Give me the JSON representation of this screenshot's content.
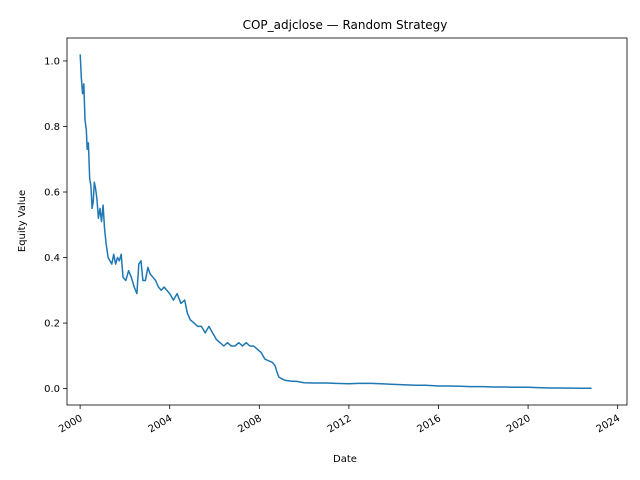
{
  "chart_data": {
    "type": "line",
    "title": "COP_adjclose — Random Strategy",
    "xlabel": "Date",
    "ylabel": "Equity Value",
    "x_axis_type": "date",
    "xlim": [
      "1999-06-01",
      "2024-06-01"
    ],
    "ylim": [
      -0.05,
      1.07
    ],
    "x_ticks": [
      "2000",
      "2004",
      "2008",
      "2012",
      "2016",
      "2020",
      "2024"
    ],
    "y_ticks": [
      "0.0",
      "0.2",
      "0.4",
      "0.6",
      "0.8",
      "1.0"
    ],
    "grid": false,
    "legend": "none",
    "series": [
      {
        "color": "#1f77b4",
        "points": [
          [
            "2000-01-03",
            1.02
          ],
          [
            "2000-01-20",
            0.95
          ],
          [
            "2000-02-10",
            0.9
          ],
          [
            "2000-03-01",
            0.93
          ],
          [
            "2000-03-20",
            0.82
          ],
          [
            "2000-04-10",
            0.79
          ],
          [
            "2000-04-25",
            0.73
          ],
          [
            "2000-05-15",
            0.75
          ],
          [
            "2000-06-05",
            0.64
          ],
          [
            "2000-06-25",
            0.62
          ],
          [
            "2000-07-15",
            0.55
          ],
          [
            "2000-08-01",
            0.57
          ],
          [
            "2000-08-20",
            0.63
          ],
          [
            "2000-09-10",
            0.61
          ],
          [
            "2000-10-01",
            0.58
          ],
          [
            "2000-10-25",
            0.52
          ],
          [
            "2000-11-20",
            0.55
          ],
          [
            "2000-12-15",
            0.51
          ],
          [
            "2001-01-10",
            0.56
          ],
          [
            "2001-02-01",
            0.49
          ],
          [
            "2001-03-01",
            0.44
          ],
          [
            "2001-04-01",
            0.4
          ],
          [
            "2001-05-01",
            0.39
          ],
          [
            "2001-06-01",
            0.38
          ],
          [
            "2001-07-01",
            0.41
          ],
          [
            "2001-08-01",
            0.38
          ],
          [
            "2001-09-01",
            0.4
          ],
          [
            "2001-10-01",
            0.39
          ],
          [
            "2001-11-01",
            0.41
          ],
          [
            "2001-12-01",
            0.34
          ],
          [
            "2002-01-15",
            0.33
          ],
          [
            "2002-03-01",
            0.36
          ],
          [
            "2002-04-15",
            0.34
          ],
          [
            "2002-06-01",
            0.31
          ],
          [
            "2002-07-15",
            0.29
          ],
          [
            "2002-08-15",
            0.38
          ],
          [
            "2002-09-20",
            0.39
          ],
          [
            "2002-10-20",
            0.33
          ],
          [
            "2002-12-01",
            0.33
          ],
          [
            "2003-01-10",
            0.37
          ],
          [
            "2003-02-15",
            0.35
          ],
          [
            "2003-04-01",
            0.34
          ],
          [
            "2003-05-15",
            0.33
          ],
          [
            "2003-07-01",
            0.31
          ],
          [
            "2003-08-15",
            0.3
          ],
          [
            "2003-10-01",
            0.31
          ],
          [
            "2003-11-15",
            0.3
          ],
          [
            "2004-01-01",
            0.29
          ],
          [
            "2004-03-01",
            0.27
          ],
          [
            "2004-05-01",
            0.29
          ],
          [
            "2004-07-01",
            0.26
          ],
          [
            "2004-09-01",
            0.27
          ],
          [
            "2004-10-15",
            0.23
          ],
          [
            "2004-12-01",
            0.21
          ],
          [
            "2005-02-01",
            0.2
          ],
          [
            "2005-04-01",
            0.19
          ],
          [
            "2005-06-01",
            0.19
          ],
          [
            "2005-08-01",
            0.17
          ],
          [
            "2005-10-01",
            0.19
          ],
          [
            "2005-12-01",
            0.17
          ],
          [
            "2006-02-01",
            0.15
          ],
          [
            "2006-04-01",
            0.14
          ],
          [
            "2006-06-01",
            0.13
          ],
          [
            "2006-08-01",
            0.14
          ],
          [
            "2006-10-01",
            0.13
          ],
          [
            "2006-12-01",
            0.13
          ],
          [
            "2007-02-01",
            0.14
          ],
          [
            "2007-04-01",
            0.13
          ],
          [
            "2007-06-01",
            0.14
          ],
          [
            "2007-08-01",
            0.13
          ],
          [
            "2007-10-01",
            0.13
          ],
          [
            "2007-12-01",
            0.12
          ],
          [
            "2008-02-01",
            0.11
          ],
          [
            "2008-04-01",
            0.09
          ],
          [
            "2008-06-01",
            0.085
          ],
          [
            "2008-08-01",
            0.08
          ],
          [
            "2008-09-15",
            0.07
          ],
          [
            "2008-10-15",
            0.05
          ],
          [
            "2008-11-15",
            0.035
          ],
          [
            "2009-01-01",
            0.03
          ],
          [
            "2009-03-01",
            0.025
          ],
          [
            "2009-06-01",
            0.023
          ],
          [
            "2009-09-01",
            0.022
          ],
          [
            "2010-01-01",
            0.018
          ],
          [
            "2010-06-01",
            0.017
          ],
          [
            "2011-01-01",
            0.017
          ],
          [
            "2011-06-01",
            0.016
          ],
          [
            "2012-01-01",
            0.015
          ],
          [
            "2012-06-01",
            0.016
          ],
          [
            "2013-01-01",
            0.016
          ],
          [
            "2013-06-01",
            0.015
          ],
          [
            "2014-01-01",
            0.013
          ],
          [
            "2014-06-01",
            0.012
          ],
          [
            "2015-01-01",
            0.01
          ],
          [
            "2015-06-01",
            0.01
          ],
          [
            "2016-01-01",
            0.008
          ],
          [
            "2016-06-01",
            0.008
          ],
          [
            "2017-01-01",
            0.007
          ],
          [
            "2017-06-01",
            0.006
          ],
          [
            "2018-01-01",
            0.006
          ],
          [
            "2018-06-01",
            0.005
          ],
          [
            "2019-01-01",
            0.005
          ],
          [
            "2019-06-01",
            0.004
          ],
          [
            "2020-01-01",
            0.004
          ],
          [
            "2020-06-01",
            0.003
          ],
          [
            "2021-01-01",
            0.002
          ],
          [
            "2021-06-01",
            0.002
          ],
          [
            "2022-01-01",
            0.0015
          ],
          [
            "2022-06-01",
            0.0012
          ],
          [
            "2022-11-01",
            0.001
          ]
        ]
      }
    ]
  }
}
